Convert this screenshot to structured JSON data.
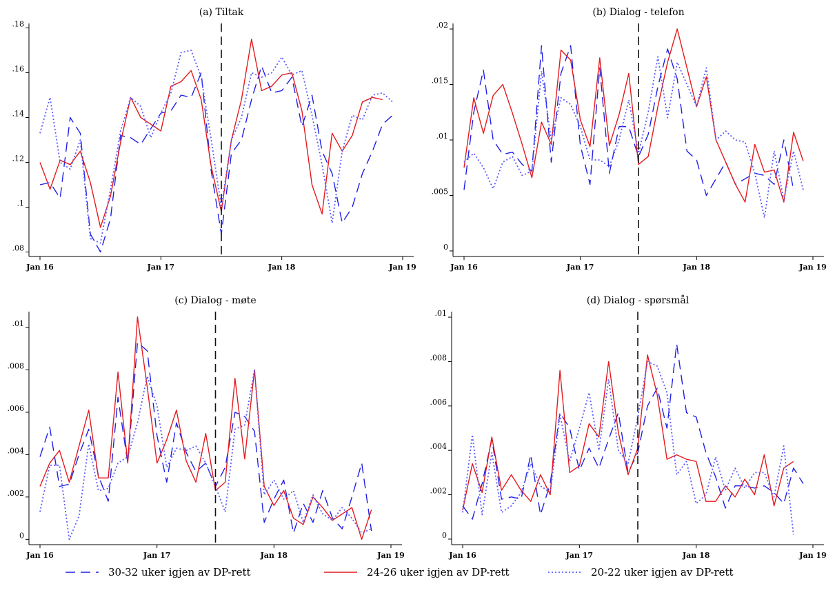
{
  "chart_data": {
    "type": "line",
    "x_tick_labels": [
      "Jan 16",
      "Jan 17",
      "Jan 18",
      "Jan 19"
    ],
    "x_tick_values": [
      0,
      12,
      24,
      36
    ],
    "x_range": [
      0,
      36
    ],
    "vline_x": 18,
    "legend_position": "bottom",
    "grid": false,
    "series_styles": [
      {
        "color": "#1f1fe6",
        "dash": "14,8",
        "width": 1.4
      },
      {
        "color": "#e41a1c",
        "dash": "",
        "width": 1.4
      },
      {
        "color": "#5a5aff",
        "dash": "2,3",
        "width": 1.8
      }
    ],
    "legend": [
      "30-32 uker igjen av DP-rett",
      "24-26 uker igjen av DP-rett",
      "20-22 uker igjen av DP-rett"
    ],
    "panels": [
      {
        "title": "(a) Tiltak",
        "ylim": [
          0.078,
          0.182
        ],
        "y_tick_values": [
          0.08,
          0.1,
          0.12,
          0.14,
          0.16,
          0.18
        ],
        "y_tick_labels": [
          ".08",
          ".1",
          ".12",
          ".14",
          ".16",
          ".18"
        ],
        "series": [
          [
            0.11,
            0.111,
            0.104,
            0.14,
            0.133,
            0.088,
            0.08,
            0.095,
            0.132,
            0.131,
            0.128,
            0.135,
            0.142,
            0.143,
            0.15,
            0.149,
            0.16,
            0.116,
            0.088,
            0.124,
            0.13,
            0.148,
            0.163,
            0.151,
            0.152,
            0.158,
            0.136,
            0.15,
            0.125,
            0.115,
            0.093,
            0.1,
            0.115,
            0.125,
            0.137,
            0.141
          ],
          [
            0.12,
            0.108,
            0.121,
            0.119,
            0.125,
            0.111,
            0.091,
            0.105,
            0.129,
            0.149,
            0.14,
            0.137,
            0.134,
            0.154,
            0.156,
            0.161,
            0.148,
            0.118,
            0.098,
            0.13,
            0.148,
            0.175,
            0.152,
            0.154,
            0.159,
            0.16,
            0.143,
            0.11,
            0.097,
            0.133,
            0.125,
            0.132,
            0.147,
            0.149,
            0.148
          ],
          [
            0.133,
            0.149,
            0.12,
            0.117,
            0.13,
            0.086,
            0.084,
            0.108,
            0.134,
            0.149,
            0.145,
            0.131,
            0.142,
            0.151,
            0.169,
            0.17,
            0.158,
            0.13,
            0.1,
            0.13,
            0.14,
            0.16,
            0.158,
            0.16,
            0.167,
            0.159,
            0.161,
            0.141,
            0.119,
            0.093,
            0.125,
            0.141,
            0.139,
            0.15,
            0.151,
            0.147
          ]
        ]
      },
      {
        "title": "(b) Dialog - telefon",
        "ylim": [
          -0.0005,
          0.0205
        ],
        "y_tick_values": [
          0,
          0.005,
          0.01,
          0.015,
          0.02
        ],
        "y_tick_labels": [
          "0",
          ".005",
          ".01",
          ".015",
          ".02"
        ],
        "series": [
          [
            0.0055,
            0.0125,
            0.0163,
            0.01,
            0.0087,
            0.0089,
            0.0078,
            0.0072,
            0.0185,
            0.008,
            0.016,
            0.0185,
            0.0095,
            0.006,
            0.0165,
            0.007,
            0.0112,
            0.0112,
            0.0085,
            0.0105,
            0.0148,
            0.0182,
            0.0155,
            0.009,
            0.0082,
            0.005,
            0.0065,
            0.008,
            0.006,
            0.0065,
            0.007,
            0.0068,
            0.006,
            0.01,
            0.0055
          ],
          [
            0.0075,
            0.0138,
            0.0106,
            0.014,
            0.015,
            0.0124,
            0.0096,
            0.0066,
            0.0116,
            0.0096,
            0.0181,
            0.0172,
            0.0118,
            0.0094,
            0.0174,
            0.0095,
            0.0123,
            0.016,
            0.0078,
            0.0085,
            0.013,
            0.017,
            0.02,
            0.0165,
            0.013,
            0.0157,
            0.01,
            0.008,
            0.006,
            0.0044,
            0.0096,
            0.0071,
            0.0073,
            0.0044,
            0.0107,
            0.0081
          ],
          [
            0.008,
            0.0088,
            0.0075,
            0.0056,
            0.008,
            0.0085,
            0.0068,
            0.0072,
            0.0162,
            0.01,
            0.0138,
            0.0132,
            0.0112,
            0.0082,
            0.0082,
            0.0076,
            0.01,
            0.0136,
            0.0088,
            0.0125,
            0.0175,
            0.012,
            0.017,
            0.015,
            0.013,
            0.0165,
            0.01,
            0.0108,
            0.01,
            0.0098,
            0.007,
            0.003,
            0.009,
            0.0046,
            0.009,
            0.0055
          ]
        ]
      },
      {
        "title": "(c) Dialog - møte",
        "ylim": [
          -0.00025,
          0.01075
        ],
        "y_tick_values": [
          0,
          0.002,
          0.004,
          0.006,
          0.008,
          0.01
        ],
        "y_tick_labels": [
          "0",
          ".002",
          ".004",
          ".006",
          ".008",
          ".01"
        ],
        "series": [
          [
            0.0039,
            0.0053,
            0.0025,
            0.0026,
            0.004,
            0.0052,
            0.003,
            0.0018,
            0.0067,
            0.0036,
            0.0093,
            0.0089,
            0.0049,
            0.0027,
            0.0055,
            0.0041,
            0.0032,
            0.0036,
            0.0025,
            0.0034,
            0.006,
            0.0058,
            0.0051,
            0.0008,
            0.0019,
            0.0028,
            0.0003,
            0.0017,
            0.0008,
            0.0023,
            0.001,
            0.0005,
            0.002,
            0.0036,
            0.0004
          ],
          [
            0.0025,
            0.0036,
            0.0042,
            0.0027,
            0.0044,
            0.0061,
            0.0029,
            0.0029,
            0.0079,
            0.0036,
            0.0105,
            0.0072,
            0.0036,
            0.0047,
            0.0061,
            0.0037,
            0.0027,
            0.005,
            0.0023,
            0.0027,
            0.0076,
            0.0038,
            0.008,
            0.0025,
            0.0016,
            0.0023,
            0.001,
            0.0007,
            0.002,
            0.0015,
            0.0009,
            0.0012,
            0.0015,
            0.0,
            0.0014
          ],
          [
            0.0013,
            0.0035,
            0.0035,
            0.0,
            0.0011,
            0.0045,
            0.0023,
            0.0024,
            0.0036,
            0.0039,
            0.0055,
            0.0077,
            0.0063,
            0.0034,
            0.0043,
            0.0042,
            0.0044,
            0.0036,
            0.0025,
            0.0013,
            0.0052,
            0.0054,
            0.008,
            0.0021,
            0.0028,
            0.0019,
            0.0023,
            0.0008,
            0.0021,
            0.0012,
            0.0009,
            0.0015,
            0.001,
            0.0003,
            0.0005
          ]
        ]
      },
      {
        "title": "(d) Dialog - spørsmål",
        "ylim": [
          -0.00025,
          0.01025
        ],
        "y_tick_values": [
          0,
          0.002,
          0.004,
          0.006,
          0.008,
          0.01
        ],
        "y_tick_labels": [
          "0",
          ".002",
          ".004",
          ".006",
          ".008",
          ".01"
        ],
        "series": [
          [
            0.0015,
            0.0009,
            0.0025,
            0.0045,
            0.0018,
            0.0019,
            0.0018,
            0.0038,
            0.0011,
            0.0025,
            0.0057,
            0.005,
            0.0031,
            0.0041,
            0.0032,
            0.0045,
            0.0057,
            0.003,
            0.0039,
            0.006,
            0.0068,
            0.005,
            0.0088,
            0.0057,
            0.0055,
            0.0039,
            0.0028,
            0.0014,
            0.0024,
            0.0024,
            0.0023,
            0.0024,
            0.0021,
            0.0016,
            0.0032,
            0.0025
          ],
          [
            0.0013,
            0.0034,
            0.0021,
            0.0046,
            0.0022,
            0.0029,
            0.0022,
            0.0017,
            0.0029,
            0.002,
            0.0076,
            0.003,
            0.0033,
            0.0052,
            0.0046,
            0.008,
            0.0048,
            0.0029,
            0.0041,
            0.0083,
            0.0065,
            0.0036,
            0.0038,
            0.0036,
            0.0035,
            0.0017,
            0.0017,
            0.0024,
            0.0019,
            0.0027,
            0.002,
            0.0038,
            0.0015,
            0.0032,
            0.0035
          ],
          [
            0.0012,
            0.0047,
            0.0011,
            0.0039,
            0.0012,
            0.0015,
            0.0021,
            0.0034,
            0.0024,
            0.0021,
            0.0056,
            0.0035,
            0.005,
            0.0066,
            0.004,
            0.0072,
            0.004,
            0.0034,
            0.0055,
            0.008,
            0.0078,
            0.0066,
            0.0029,
            0.0035,
            0.0016,
            0.002,
            0.0037,
            0.0022,
            0.0032,
            0.0023,
            0.003,
            0.003,
            0.0019,
            0.0042,
            0.0002
          ]
        ]
      }
    ]
  }
}
